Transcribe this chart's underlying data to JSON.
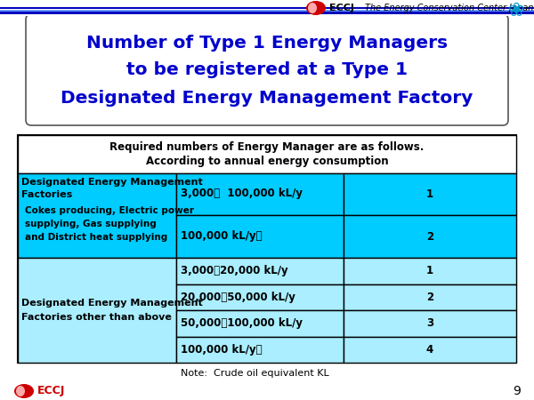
{
  "title_line1": "Number of Type 1 Energy Managers",
  "title_line2": "to be registered at a Type 1",
  "title_line3": "Designated Energy Management Factory",
  "title_color": "#0000CC",
  "title_box_facecolor": "#FFFFFF",
  "title_box_edgecolor": "#555555",
  "header_line1": "Required numbers of Energy Manager are as follows.",
  "header_line2": "According to annual energy consumption",
  "cyan_dark": "#00CCFF",
  "cyan_light": "#AAEEFF",
  "white": "#FFFFFF",
  "black": "#000000",
  "col2_row1_sub1": "3,000～  100,000 kL/y",
  "col3_row1_sub1": "1",
  "col2_row1_sub2": "100,000 kL/y～",
  "col3_row1_sub2": "2",
  "col2_row2_sub1": "3,000～20,000 kL/y",
  "col3_row2_sub1": "1",
  "col2_row2_sub2": "20,000～50,000 kL/y",
  "col3_row2_sub2": "2",
  "col2_row2_sub3": "50,000～100,000 kL/y",
  "col3_row2_sub3": "3",
  "col2_row2_sub4": "100,000 kL/y～",
  "col3_row2_sub4": "4",
  "note": "Note:  Crude oil equivalent KL",
  "footer_eccj": "ECCJ",
  "footer_num": "9",
  "top_bar_dark": "#0000BB",
  "top_bar_mid": "#4477EE",
  "top_bar_light": "#6699FF",
  "bg_color": "#F0F0F0"
}
